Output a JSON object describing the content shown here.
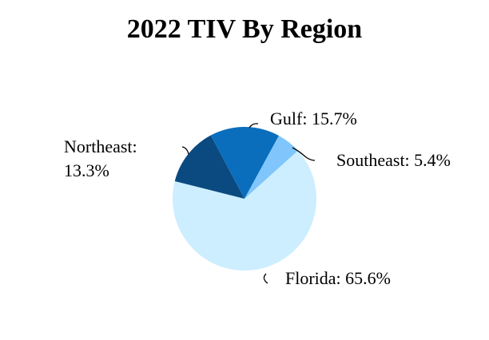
{
  "chart_data": {
    "type": "pie",
    "title": "2022 TIV By Region",
    "values": [
      65.6,
      13.3,
      15.7,
      5.4
    ],
    "value_labels": [
      "Florida: 65.6%",
      "Northeast: 13.3%",
      "Gulf: 15.7%",
      "Southeast: 5.4%"
    ],
    "colors": [
      "#cdeeff",
      "#0b4a80",
      "#0a6ebd",
      "#80c6fc"
    ]
  }
}
